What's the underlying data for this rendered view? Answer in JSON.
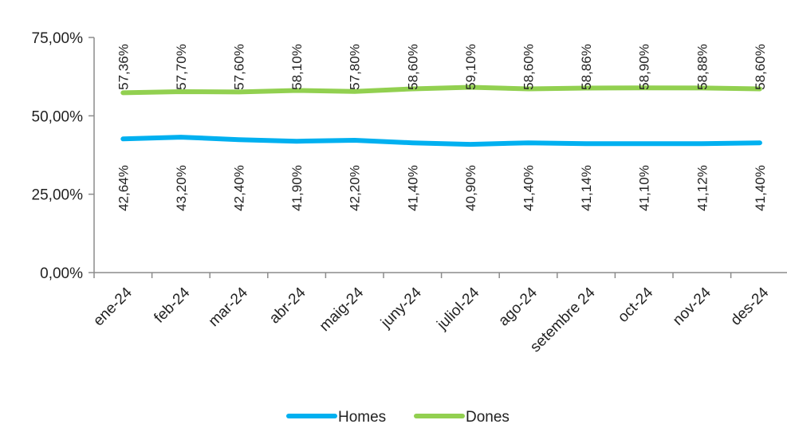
{
  "chart_data": {
    "type": "line",
    "categories": [
      "ene-24",
      "feb-24",
      "mar-24",
      "abr-24",
      "maig-24",
      "juny-24",
      "juliol-24",
      "ago-24",
      "setembre 24",
      "oct-24",
      "nov-24",
      "des-24"
    ],
    "series": [
      {
        "name": "Homes",
        "color": "#00b0f0",
        "values": [
          42.64,
          43.2,
          42.4,
          41.9,
          42.2,
          41.4,
          40.9,
          41.4,
          41.14,
          41.1,
          41.12,
          41.4
        ],
        "labels": [
          "42,64%",
          "43,20%",
          "42,40%",
          "41,90%",
          "42,20%",
          "41,40%",
          "40,90%",
          "41,40%",
          "41,14%",
          "41,10%",
          "41,12%",
          "41,40%"
        ]
      },
      {
        "name": "Dones",
        "color": "#92d050",
        "values": [
          57.36,
          57.7,
          57.6,
          58.1,
          57.8,
          58.6,
          59.1,
          58.6,
          58.86,
          58.9,
          58.88,
          58.6
        ],
        "labels": [
          "57,36%",
          "57,70%",
          "57,60%",
          "58,10%",
          "57,80%",
          "58,60%",
          "59,10%",
          "58,60%",
          "58,86%",
          "58,90%",
          "58,88%",
          "58,60%"
        ]
      }
    ],
    "y_ticks": [
      {
        "value": 0,
        "label": "0,00%"
      },
      {
        "value": 25,
        "label": "25,00%"
      },
      {
        "value": 50,
        "label": "50,00%"
      },
      {
        "value": 75,
        "label": "75,00%"
      }
    ],
    "ylim": [
      0,
      75
    ],
    "grid": false,
    "legend_position": "bottom"
  }
}
